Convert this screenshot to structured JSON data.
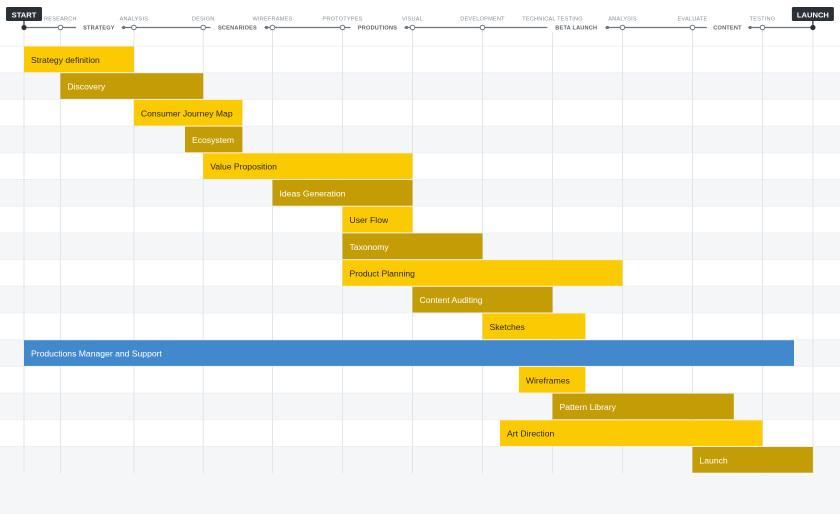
{
  "chart_data": {
    "type": "gantt",
    "markers": {
      "start": "START",
      "end": "LAUNCH"
    },
    "milestones_top": [
      "RESEARCH",
      "ANALYSIS",
      "DESIGN",
      "WIREFRAMES",
      "PROTOTYPES",
      "VISUAL",
      "DEVELOPMENT",
      "TECHNICAL TESTING",
      "ANALYSIS",
      "EVALUATE",
      "TESTING"
    ],
    "milestones_bottom": [
      "STRATEGY",
      "SCENARIOES",
      "PRODUTIONS",
      "BETA LAUNCH",
      "CONTENT"
    ],
    "colors": {
      "yellow": "#FCCA00",
      "olive": "#C39C06",
      "blue": "#4189CC",
      "dark": "#2B2F36",
      "line": "#6E747D",
      "milestone_text": "#8A9099",
      "grid": "#E2E5EA",
      "band": "#F4F6F8"
    },
    "tasks": [
      {
        "name": "Strategy definition",
        "start": 0.0,
        "end": 1.57,
        "color": "yellow"
      },
      {
        "name": "Discovery",
        "start": 0.52,
        "end": 2.56,
        "color": "olive"
      },
      {
        "name": "Consumer Journey Map",
        "start": 1.57,
        "end": 3.12,
        "color": "yellow"
      },
      {
        "name": "Ecosystem",
        "start": 2.3,
        "end": 3.12,
        "color": "olive"
      },
      {
        "name": "Value Proposition",
        "start": 2.56,
        "end": 5.55,
        "color": "yellow"
      },
      {
        "name": "Ideas Generation",
        "start": 3.55,
        "end": 5.55,
        "color": "olive"
      },
      {
        "name": "User Flow",
        "start": 4.55,
        "end": 5.55,
        "color": "yellow"
      },
      {
        "name": "Taxonomy",
        "start": 4.55,
        "end": 6.55,
        "color": "olive"
      },
      {
        "name": "Product Planning",
        "start": 4.55,
        "end": 8.55,
        "color": "yellow"
      },
      {
        "name": "Content Auditing",
        "start": 5.55,
        "end": 7.55,
        "color": "olive"
      },
      {
        "name": "Sketches",
        "start": 6.55,
        "end": 8.02,
        "color": "yellow"
      },
      {
        "name": "Productions Manager and Support",
        "start": 0.0,
        "end": 11.0,
        "color": "blue"
      },
      {
        "name": "Wireframes",
        "start": 7.07,
        "end": 8.02,
        "color": "yellow"
      },
      {
        "name": "Pattern Library",
        "start": 7.55,
        "end": 10.14,
        "color": "olive"
      },
      {
        "name": "Art Direction",
        "start": 6.8,
        "end": 10.55,
        "color": "yellow"
      },
      {
        "name": "Launch",
        "start": 9.55,
        "end": 11.27,
        "color": "olive"
      }
    ]
  }
}
